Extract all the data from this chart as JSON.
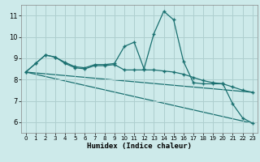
{
  "xlabel": "Humidex (Indice chaleur)",
  "background_color": "#cdeaea",
  "grid_color": "#aecfcf",
  "line_color": "#1a7070",
  "xlim": [
    -0.5,
    23.5
  ],
  "ylim": [
    5.5,
    11.5
  ],
  "xticks": [
    0,
    1,
    2,
    3,
    4,
    5,
    6,
    7,
    8,
    9,
    10,
    11,
    12,
    13,
    14,
    15,
    16,
    17,
    18,
    19,
    20,
    21,
    22,
    23
  ],
  "yticks": [
    6,
    7,
    8,
    9,
    10,
    11
  ],
  "line_peak": {
    "x": [
      0,
      1,
      2,
      3,
      4,
      5,
      6,
      7,
      8,
      9,
      10,
      11,
      12,
      13,
      14,
      15,
      16,
      17,
      18,
      19,
      20,
      21,
      22,
      23
    ],
    "y": [
      8.35,
      8.75,
      9.15,
      9.05,
      8.8,
      8.6,
      8.55,
      8.7,
      8.7,
      8.75,
      9.55,
      9.75,
      8.5,
      10.15,
      11.2,
      10.8,
      8.85,
      7.85,
      7.8,
      7.8,
      7.8,
      6.85,
      6.2,
      5.95
    ]
  },
  "line_flat": {
    "x": [
      0,
      1,
      2,
      3,
      4,
      5,
      6,
      7,
      8,
      9,
      10,
      11,
      12,
      13,
      14,
      15,
      16,
      17,
      18,
      19,
      20,
      21,
      22,
      23
    ],
    "y": [
      8.35,
      8.75,
      9.15,
      9.05,
      8.75,
      8.55,
      8.5,
      8.65,
      8.65,
      8.7,
      8.45,
      8.45,
      8.45,
      8.45,
      8.4,
      8.35,
      8.25,
      8.1,
      7.95,
      7.85,
      7.8,
      7.65,
      7.5,
      7.4
    ]
  },
  "line_diag1": {
    "x": [
      0,
      23
    ],
    "y": [
      8.35,
      5.95
    ]
  },
  "line_diag2": {
    "x": [
      0,
      23
    ],
    "y": [
      8.35,
      7.4
    ]
  }
}
